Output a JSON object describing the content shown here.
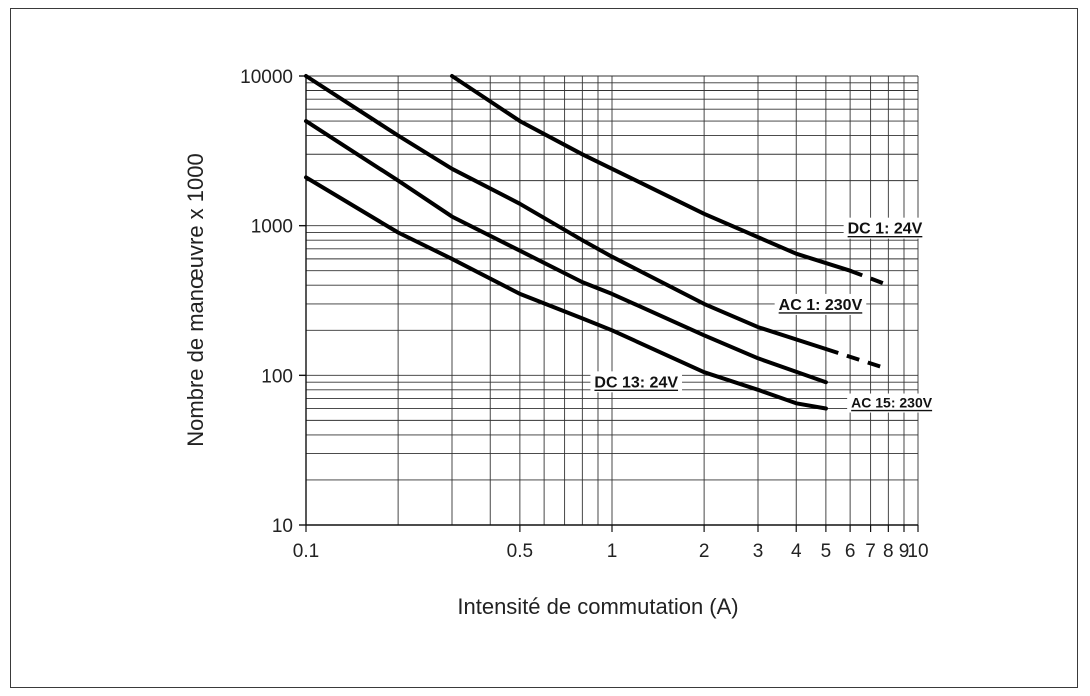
{
  "chart_data": {
    "type": "line",
    "title": "",
    "xlabel": "Intensité de commutation (A)",
    "ylabel": "Nombre de manœuvre x 1000",
    "xscale": "log",
    "yscale": "log",
    "xlim": [
      0.1,
      10
    ],
    "ylim": [
      10,
      10000
    ],
    "grid": true,
    "x_ticks": [
      {
        "value": 0.1,
        "label": "0.1"
      },
      {
        "value": 0.5,
        "label": "0.5"
      },
      {
        "value": 1,
        "label": "1"
      },
      {
        "value": 2,
        "label": "2"
      },
      {
        "value": 3,
        "label": "3"
      },
      {
        "value": 4,
        "label": "4"
      },
      {
        "value": 5,
        "label": "5"
      },
      {
        "value": 6,
        "label": "6"
      },
      {
        "value": 7,
        "label": "7"
      },
      {
        "value": 8,
        "label": "8"
      },
      {
        "value": 9,
        "label": "9"
      },
      {
        "value": 10,
        "label": "10"
      }
    ],
    "y_ticks": [
      {
        "value": 10,
        "label": "10"
      },
      {
        "value": 100,
        "label": "100"
      },
      {
        "value": 1000,
        "label": "1000"
      },
      {
        "value": 10000,
        "label": "10000"
      }
    ],
    "series": [
      {
        "name": "DC 1: 24V",
        "solid": [
          [
            0.3,
            10000
          ],
          [
            0.5,
            5000
          ],
          [
            0.8,
            3000
          ],
          [
            1,
            2400
          ],
          [
            2,
            1200
          ],
          [
            4,
            650
          ],
          [
            6,
            500
          ]
        ],
        "dashed": [
          [
            6,
            500
          ],
          [
            8,
            400
          ]
        ]
      },
      {
        "name": "AC 1: 230V",
        "solid": [
          [
            0.1,
            10000
          ],
          [
            0.2,
            4000
          ],
          [
            0.3,
            2400
          ],
          [
            0.5,
            1400
          ],
          [
            0.8,
            800
          ],
          [
            1,
            620
          ],
          [
            2,
            300
          ],
          [
            3,
            210
          ],
          [
            5,
            150
          ]
        ],
        "dashed": [
          [
            5,
            150
          ],
          [
            8,
            110
          ]
        ]
      },
      {
        "name": "AC 15: 230V",
        "solid": [
          [
            0.1,
            5000
          ],
          [
            0.2,
            2000
          ],
          [
            0.3,
            1150
          ],
          [
            0.5,
            680
          ],
          [
            0.8,
            420
          ],
          [
            1,
            350
          ],
          [
            2,
            185
          ],
          [
            3,
            130
          ],
          [
            5,
            90
          ]
        ],
        "dashed": []
      },
      {
        "name": "DC 13: 24V",
        "solid": [
          [
            0.1,
            2100
          ],
          [
            0.2,
            900
          ],
          [
            0.3,
            600
          ],
          [
            0.5,
            350
          ],
          [
            0.8,
            240
          ],
          [
            1,
            200
          ],
          [
            2,
            105
          ],
          [
            3,
            80
          ],
          [
            4,
            65
          ],
          [
            5,
            60
          ]
        ],
        "dashed": []
      }
    ]
  }
}
